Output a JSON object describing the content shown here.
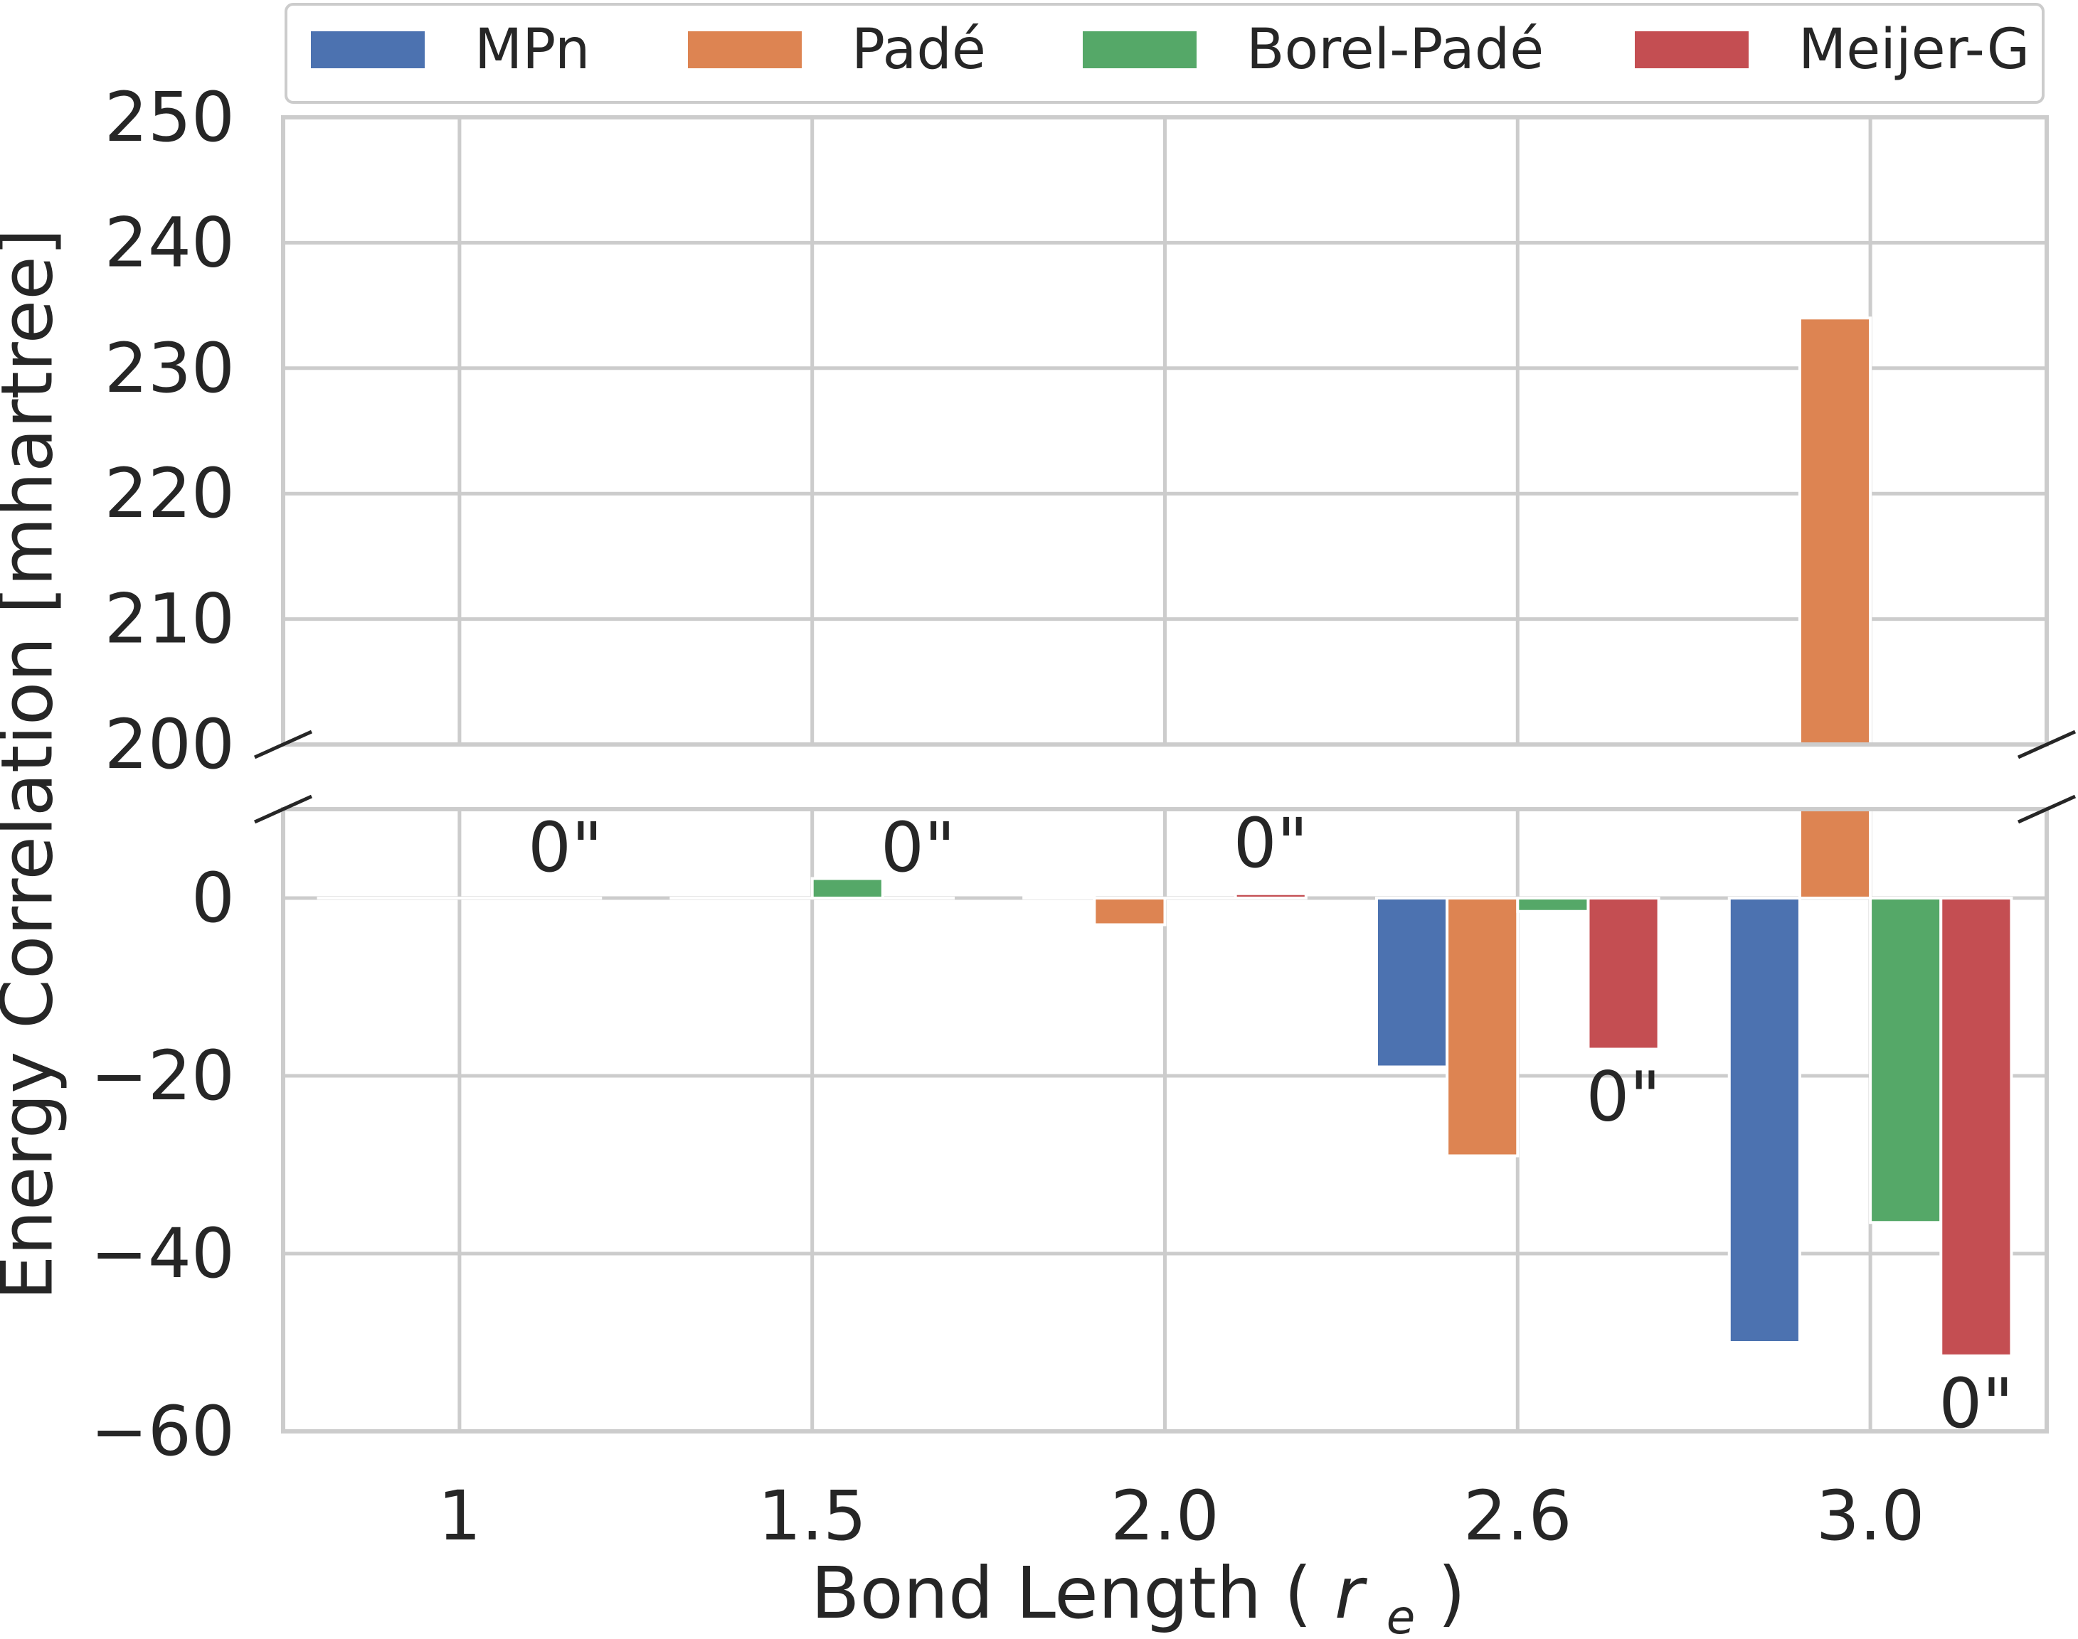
{
  "chart_data": {
    "type": "bar",
    "xlabel": "Bond Length",
    "xlabel_symbol": "r",
    "xlabel_subscript": "e",
    "ylabel": "Energy Correlation [mhartree]",
    "categories": [
      "1",
      "1.5",
      "2.0",
      "2.6",
      "3.0"
    ],
    "series": [
      {
        "name": "MPn",
        "color": "#4c72b0",
        "values": [
          0.0,
          0.0,
          0.3,
          -19.0,
          -50.0
        ]
      },
      {
        "name": "Padé",
        "color": "#dd8452",
        "values": [
          0.0,
          0.0,
          -3.0,
          -29.0,
          234.0
        ]
      },
      {
        "name": "Borel-Padé",
        "color": "#55a868",
        "values": [
          0.0,
          2.2,
          0.0,
          -1.5,
          -36.5
        ]
      },
      {
        "name": "Meijer-G",
        "color": "#c44e52",
        "values": [
          0.0,
          0.0,
          0.5,
          -17.0,
          -51.5
        ]
      }
    ],
    "bar_labels": [
      {
        "category": "1",
        "series": "Meijer-G",
        "text": "0\""
      },
      {
        "category": "1.5",
        "series": "Meijer-G",
        "text": "0\""
      },
      {
        "category": "2.0",
        "series": "Meijer-G",
        "text": "0\""
      },
      {
        "category": "2.6",
        "series": "Meijer-G",
        "text": "0\""
      },
      {
        "category": "3.0",
        "series": "Meijer-G",
        "text": "0\""
      }
    ],
    "upper_panel": {
      "ylim": [
        200,
        250
      ],
      "ticks": [
        200,
        210,
        220,
        230,
        240,
        250
      ]
    },
    "lower_panel": {
      "ylim": [
        -60,
        10
      ],
      "ticks": [
        -60,
        -40,
        -20,
        0
      ]
    },
    "broken_axis": true,
    "grid": true,
    "legend": {
      "placement": "top"
    }
  }
}
